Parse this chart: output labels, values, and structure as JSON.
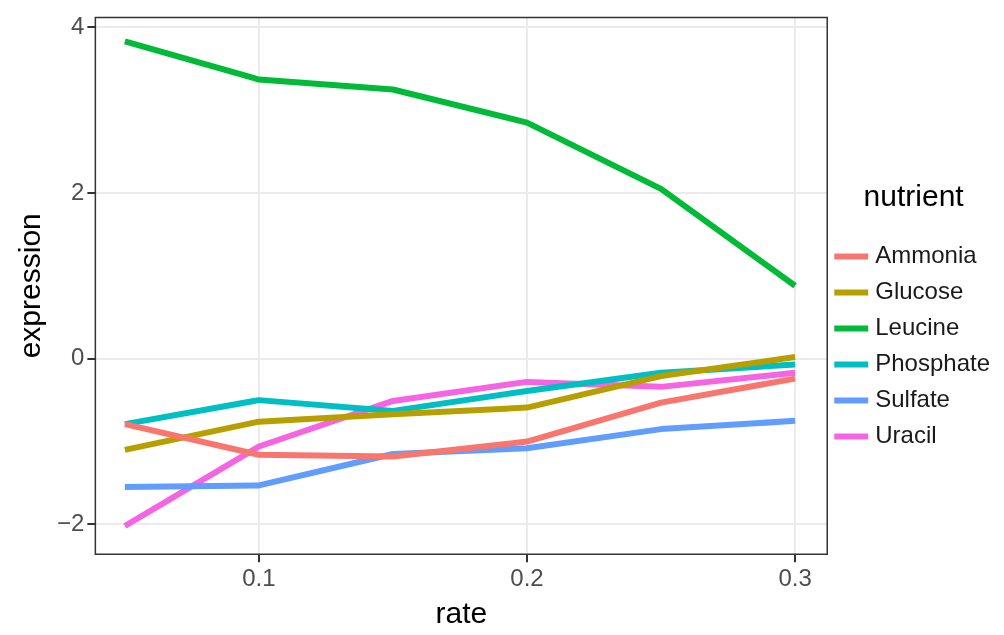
{
  "chart_data": {
    "type": "line",
    "xlabel": "rate",
    "ylabel": "expression",
    "legend_title": "nutrient",
    "legend": "right",
    "grid": true,
    "line_style": "solid",
    "marker": "none",
    "x": [
      0.05,
      0.1,
      0.15,
      0.2,
      0.25,
      0.3
    ],
    "xlim": [
      0.039,
      0.312
    ],
    "xticks": [
      0.1,
      0.2,
      0.3
    ],
    "ylim": [
      -2.36,
      4.12
    ],
    "yticks": [
      -2,
      0,
      2,
      4
    ],
    "series": [
      {
        "name": "Ammonia",
        "color": "#f8766d",
        "values": [
          -0.79,
          -1.16,
          -1.18,
          -1.0,
          -0.53,
          -0.24
        ]
      },
      {
        "name": "Glucose",
        "color": "#b79f00",
        "values": [
          -1.1,
          -0.76,
          -0.67,
          -0.59,
          -0.21,
          0.02
        ]
      },
      {
        "name": "Leucine",
        "color": "#00ba38",
        "values": [
          3.83,
          3.37,
          3.25,
          2.85,
          2.05,
          0.88
        ]
      },
      {
        "name": "Phosphate",
        "color": "#00bfc4",
        "values": [
          -0.79,
          -0.5,
          -0.63,
          -0.39,
          -0.17,
          -0.07
        ]
      },
      {
        "name": "Sulfate",
        "color": "#619cff",
        "values": [
          -1.55,
          -1.53,
          -1.15,
          -1.08,
          -0.85,
          -0.75
        ]
      },
      {
        "name": "Uracil",
        "color": "#f564e3",
        "values": [
          -2.02,
          -1.06,
          -0.51,
          -0.28,
          -0.34,
          -0.17
        ]
      }
    ]
  }
}
